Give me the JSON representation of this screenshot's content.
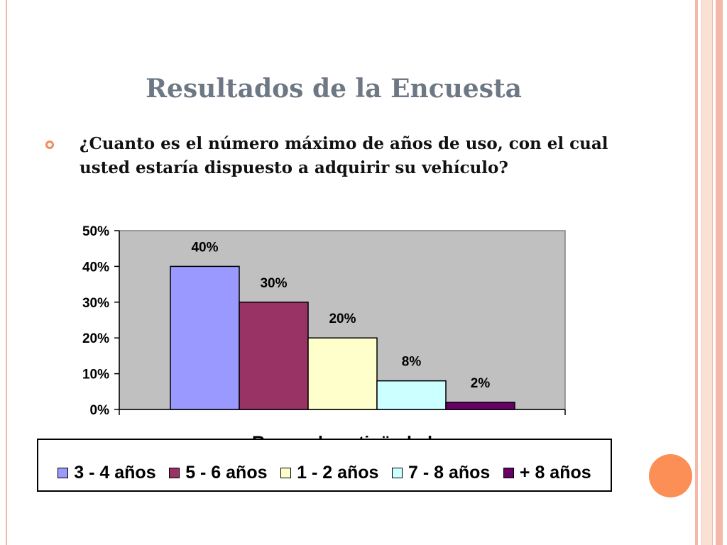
{
  "slide": {
    "title": "Resultados de la Encuesta",
    "question": "¿Cuanto es el número máximo de años de uso, con el cual usted estaría dispuesto a adquirir su vehículo?"
  },
  "chart_data": {
    "type": "bar",
    "xlabel": "Rango de antigüedad",
    "ylabel": "",
    "ylim": [
      0,
      50
    ],
    "yticks": [
      "0%",
      "10%",
      "20%",
      "30%",
      "40%",
      "50%"
    ],
    "grid": false,
    "legend_position": "bottom",
    "plot_background": "#c0c0c0",
    "series": [
      {
        "name": "3 - 4 años",
        "value": 40,
        "label": "40%",
        "color": "#9999ff"
      },
      {
        "name": "5 - 6 años",
        "value": 30,
        "label": "30%",
        "color": "#993366"
      },
      {
        "name": "1 - 2 años",
        "value": 20,
        "label": "20%",
        "color": "#ffffcc"
      },
      {
        "name": "7 - 8 años",
        "value": 8,
        "label": "8%",
        "color": "#ccffff"
      },
      {
        "name": "+ 8 años",
        "value": 2,
        "label": "2%",
        "color": "#660066"
      }
    ]
  }
}
